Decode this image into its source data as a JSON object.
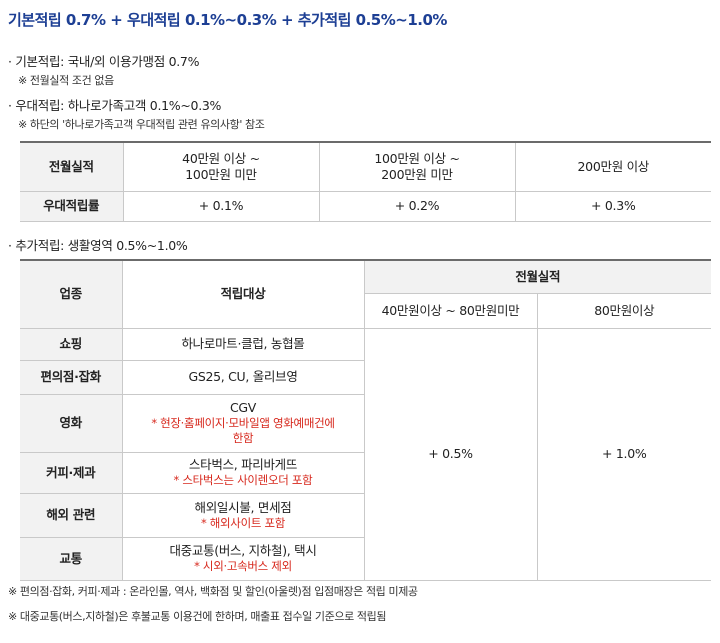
{
  "title": "기본적립 0.7% + 우대적립 0.1%~0.3% + 추가적립 0.5%~1.0%",
  "basic": {
    "line": "· 기본적립: 국내/외 이용가맹점 0.7%",
    "note": "※ 전월실적 조건 없음"
  },
  "preferred": {
    "line": "· 우대적립: 하나로가족고객 0.1%~0.3%",
    "note": "※ 하단의 '하나로가족고객 우대적립 관련 유의사항' 참조"
  },
  "table1": {
    "header": [
      "전월실적",
      "40만원 이상 ~\n100만원 미만",
      "100만원 이상 ~\n200만원 미만",
      "200만원 이상"
    ],
    "header_h1a": "40만원 이상 ~",
    "header_h1b": "100만원 미만",
    "header_h2a": "100만원 이상 ~",
    "header_h2b": "200만원 미만",
    "row_label": "우대적립률",
    "values": [
      "+ 0.1%",
      "+ 0.2%",
      "+ 0.3%"
    ]
  },
  "additional": {
    "line": "· 추가적립: 생활영역 0.5%~1.0%"
  },
  "table2": {
    "col_industry": "업종",
    "col_target": "적립대상",
    "col_perf": "전월실적",
    "col_tier1": "40만원이상 ~ 80만원미만",
    "col_tier2": "80만원이상",
    "tier1_rate": "+ 0.5%",
    "tier2_rate": "+ 1.0%",
    "rows": [
      {
        "industry": "쇼핑",
        "target": "하나로마트·클럽, 농협몰",
        "note": ""
      },
      {
        "industry": "편의점·잡화",
        "target": "GS25, CU, 올리브영",
        "note": ""
      },
      {
        "industry": "영화",
        "target": "CGV",
        "note": "* 현장·홈페이지·모바일앱 영화예매건에 한함"
      },
      {
        "industry": "커피·제과",
        "target": "스타벅스, 파리바게뜨",
        "note": "* 스타벅스는 사이렌오더 포함"
      },
      {
        "industry": "해외 관련",
        "target": "해외일시불, 면세점",
        "note": "* 해외사이트 포함"
      },
      {
        "industry": "교통",
        "target": "대중교통(버스, 지하철), 택시",
        "note": "* 시외·고속버스 제외"
      }
    ],
    "movie_note_a": "* 현장·홈페이지·모바일앱 영화예매건에",
    "movie_note_b": "한함"
  },
  "footnotes": [
    "※ 편의점·잡화, 커피·제과 : 온라인몰, 역사, 백화점 및 할인(아울렛)점 입점매장은 적립 미제공",
    "※ 대중교통(버스,지하철)은 후불교통 이용건에 한하며, 매출표 접수일 기준으로 적립됨"
  ],
  "colors": {
    "title": "#1d3f94",
    "note_red": "#d7281d",
    "header_bg": "#f2f2f2"
  }
}
